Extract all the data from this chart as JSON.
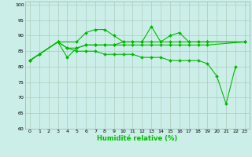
{
  "xlabel": "Humidité relative (%)",
  "bg_color": "#cceee8",
  "grid_color": "#aaccbb",
  "line_color": "#00bb00",
  "xlim": [
    -0.5,
    23.5
  ],
  "ylim": [
    60,
    101
  ],
  "yticks": [
    60,
    65,
    70,
    75,
    80,
    85,
    90,
    95,
    100
  ],
  "xticks": [
    0,
    1,
    2,
    3,
    4,
    5,
    6,
    7,
    8,
    9,
    10,
    11,
    12,
    13,
    14,
    15,
    16,
    17,
    18,
    19,
    20,
    21,
    22,
    23
  ],
  "series1": [
    82,
    84,
    null,
    88,
    null,
    88,
    91,
    92,
    92,
    90,
    88,
    88,
    88,
    93,
    88,
    90,
    91,
    88,
    88,
    88,
    null,
    null,
    null,
    88
  ],
  "series2": [
    82,
    null,
    null,
    88,
    83,
    86,
    87,
    87,
    87,
    87,
    88,
    88,
    88,
    88,
    88,
    88,
    88,
    88,
    88,
    88,
    null,
    null,
    null,
    88
  ],
  "series3": [
    82,
    84,
    null,
    88,
    86,
    86,
    87,
    87,
    87,
    87,
    87,
    87,
    87,
    87,
    87,
    87,
    87,
    87,
    87,
    87,
    null,
    null,
    null,
    88
  ],
  "series4": [
    82,
    84,
    null,
    88,
    86,
    85,
    85,
    85,
    84,
    84,
    84,
    84,
    83,
    83,
    83,
    82,
    82,
    82,
    82,
    81,
    77,
    68,
    80,
    null
  ]
}
